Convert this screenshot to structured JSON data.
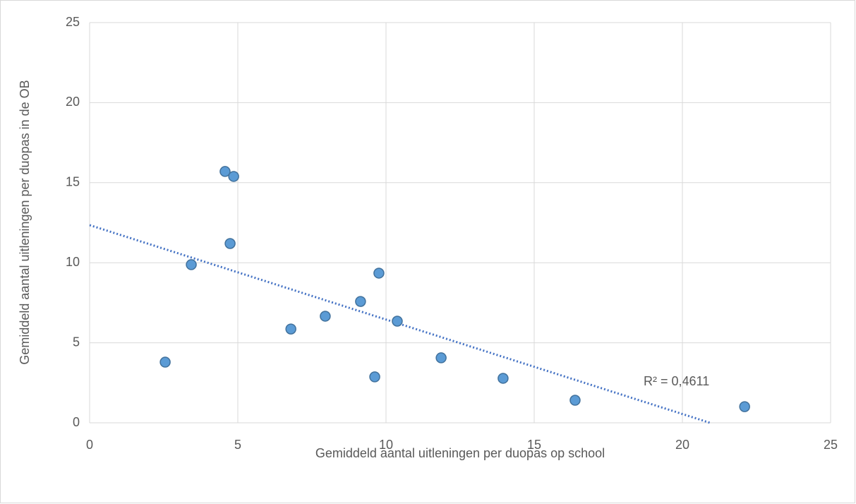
{
  "chart_data": {
    "type": "scatter",
    "x_label": "Gemiddeld aantal uitleningen per duopas op school",
    "y_label": "Gemiddeld aantal uitleningen per duopas in de OB",
    "series": [
      {
        "color": "#5b9bd5",
        "x": [
          2.55,
          3.43,
          4.57,
          4.86,
          4.74,
          6.79,
          7.95,
          9.14,
          9.76,
          9.62,
          10.38,
          11.86,
          13.95,
          16.38,
          22.1
        ],
        "values": [
          3.79,
          9.88,
          15.7,
          15.39,
          11.2,
          5.86,
          6.66,
          7.58,
          9.35,
          2.87,
          6.35,
          4.06,
          2.78,
          1.41,
          1.01
        ]
      }
    ],
    "trendline": {
      "intercept": 12.35,
      "slope": -0.59,
      "color": "#4472c4",
      "label": "R² = 0,4611"
    },
    "xlim": [
      0,
      25
    ],
    "xticks": [
      0,
      5,
      10,
      15,
      20,
      25
    ],
    "ylim": [
      0,
      25
    ],
    "yticks": [
      0,
      5,
      10,
      15,
      20,
      25
    ],
    "grid": true
  }
}
